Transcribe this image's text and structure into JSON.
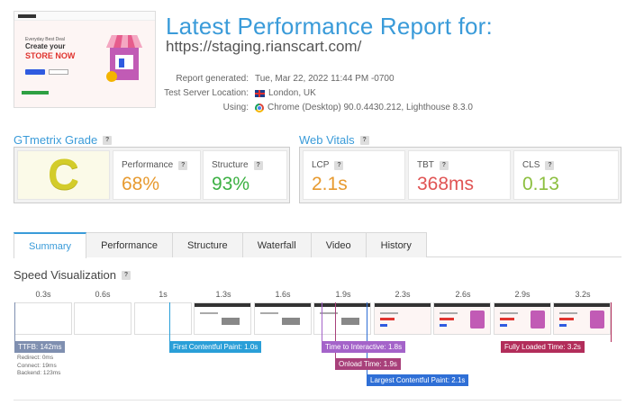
{
  "header": {
    "title": "Latest Performance Report for:",
    "url": "https://staging.rianscart.com/",
    "labels": [
      "Report generated:",
      "Test Server Location:",
      "Using:"
    ],
    "report_generated": "Tue, Mar 22, 2022 11:44 PM -0700",
    "server_location": "London, UK",
    "using": "Chrome (Desktop) 90.0.4430.212, Lighthouse 8.3.0",
    "thumbnail": {
      "small_text": "Everyday Best Deal",
      "line1": "Create your",
      "line2": "STORE NOW"
    }
  },
  "grade_section": {
    "title": "GTmetrix Grade",
    "grade": "C",
    "performance_label": "Performance",
    "performance_value": "68%",
    "structure_label": "Structure",
    "structure_value": "93%"
  },
  "vitals_section": {
    "title": "Web Vitals",
    "lcp_label": "LCP",
    "lcp_value": "2.1s",
    "tbt_label": "TBT",
    "tbt_value": "368ms",
    "cls_label": "CLS",
    "cls_value": "0.13"
  },
  "help_glyph": "?",
  "tabs": [
    "Summary",
    "Performance",
    "Structure",
    "Waterfall",
    "Video",
    "History"
  ],
  "active_tab": "Summary",
  "speed": {
    "title": "Speed Visualization",
    "ticks": [
      "0.3s",
      "0.6s",
      "1s",
      "1.3s",
      "1.6s",
      "1.9s",
      "2.3s",
      "2.6s",
      "2.9s",
      "3.2s"
    ],
    "markers": {
      "ttfb": "TTFB: 142ms",
      "fcp": "First Contentful Paint: 1.0s",
      "tti": "Time to Interactive: 1.8s",
      "onload": "Onload Time: 1.9s",
      "lcp": "Largest Contentful Paint: 2.1s",
      "fully": "Fully Loaded Time: 3.2s"
    },
    "ttfb_details": [
      "Redirect: 0ms",
      "Connect: 19ms",
      "Backend: 123ms"
    ]
  },
  "colors": {
    "accent": "#3a9bd9",
    "grade_c": "#d3cc2a",
    "orange": "#e79a2f",
    "green": "#3cb043",
    "red": "#e05454",
    "light_green": "#8cbf3f",
    "ttfb": "#7f8fb0",
    "fcp": "#2a9fd8",
    "tti": "#a463c9",
    "onload": "#a8407a",
    "lcp": "#2f6fd6",
    "fully": "#b22d5a"
  }
}
